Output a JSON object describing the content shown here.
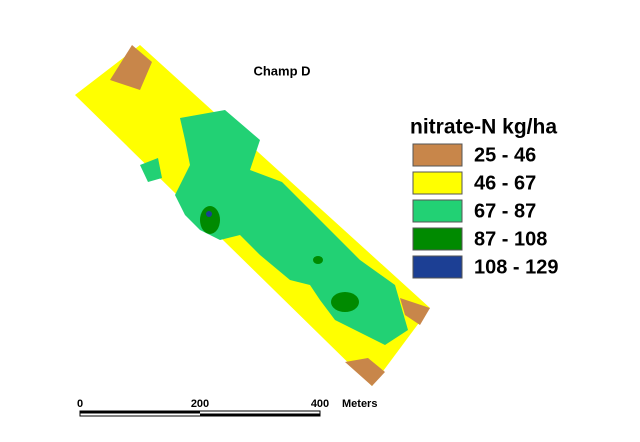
{
  "map": {
    "title": "Champ D",
    "legend": {
      "title": "nitrate-N  kg/ha",
      "items": [
        {
          "label": "25 - 46",
          "color": "#c8864a"
        },
        {
          "label": "46 - 67",
          "color": "#ffff00"
        },
        {
          "label": "67 - 87",
          "color": "#22d174"
        },
        {
          "label": "87 - 108",
          "color": "#008a00"
        },
        {
          "label": "108 - 129",
          "color": "#1c3f94"
        }
      ]
    },
    "scale_bar": {
      "labels": [
        "0",
        "200",
        "400"
      ],
      "unit": "Meters"
    }
  }
}
